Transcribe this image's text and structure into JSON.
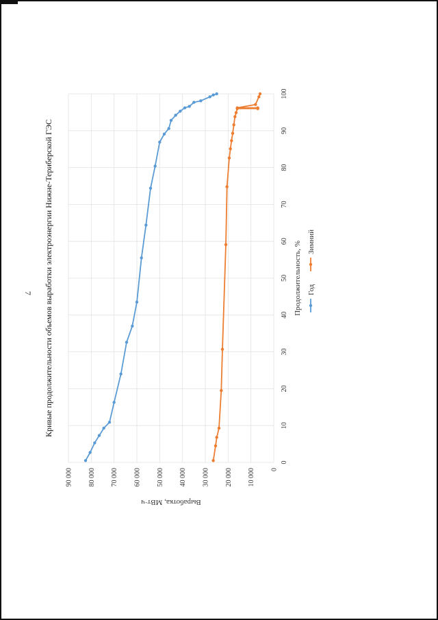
{
  "page": {
    "number": "7"
  },
  "chart_data": {
    "type": "line",
    "title": "Кривые продолжительности объемов выработки электроэнергии Нижне-Териберской ГЭС",
    "xlabel": "Продолжительность, %",
    "ylabel": "Выработка, МВт·ч",
    "xlim": [
      0,
      100
    ],
    "ylim": [
      0,
      90000
    ],
    "x_ticks": [
      "0",
      "10",
      "20",
      "30",
      "40",
      "50",
      "60",
      "70",
      "80",
      "90",
      "100"
    ],
    "y_ticks": [
      "0",
      "10 000",
      "20 000",
      "30 000",
      "40 000",
      "50 000",
      "60 000",
      "70 000",
      "80 000",
      "90 000"
    ],
    "grid": true,
    "legend_position": "bottom",
    "orientation": "rotated 90° clockwise on the page",
    "series": [
      {
        "name": "Год",
        "color": "#5b9bd5",
        "x": [
          0.5,
          2.7,
          5.3,
          7.3,
          9.3,
          10.9,
          16.3,
          24,
          32.6,
          37,
          43.5,
          55.5,
          64.4,
          74.4,
          80.4,
          86.9,
          89.1,
          90.6,
          92.8,
          94.2,
          95.3,
          96.2,
          96.6,
          97.7,
          98.1,
          99.2,
          99.7,
          100
        ],
        "y": [
          82500,
          80500,
          78500,
          76500,
          74500,
          72000,
          70000,
          67000,
          64500,
          62000,
          60000,
          58000,
          56000,
          54000,
          52000,
          50000,
          48000,
          46000,
          45000,
          43000,
          41000,
          39000,
          37000,
          35000,
          32000,
          28000,
          26500,
          25000
        ]
      },
      {
        "name": "Зимний",
        "color": "#ed7d31",
        "x": [
          0.5,
          4.5,
          6.8,
          9.3,
          19.5,
          30.7,
          59.1,
          74.8,
          82.6,
          85.1,
          87.3,
          89.3,
          91.6,
          93.8,
          94.9,
          96,
          96,
          96.2,
          96.2,
          97.1,
          99.2,
          100
        ],
        "y": [
          26500,
          25500,
          25000,
          24000,
          23000,
          22500,
          21000,
          20500,
          19500,
          19000,
          18500,
          18000,
          17500,
          17000,
          16500,
          16000,
          7000,
          7000,
          16000,
          8000,
          6500,
          6000
        ]
      }
    ]
  }
}
